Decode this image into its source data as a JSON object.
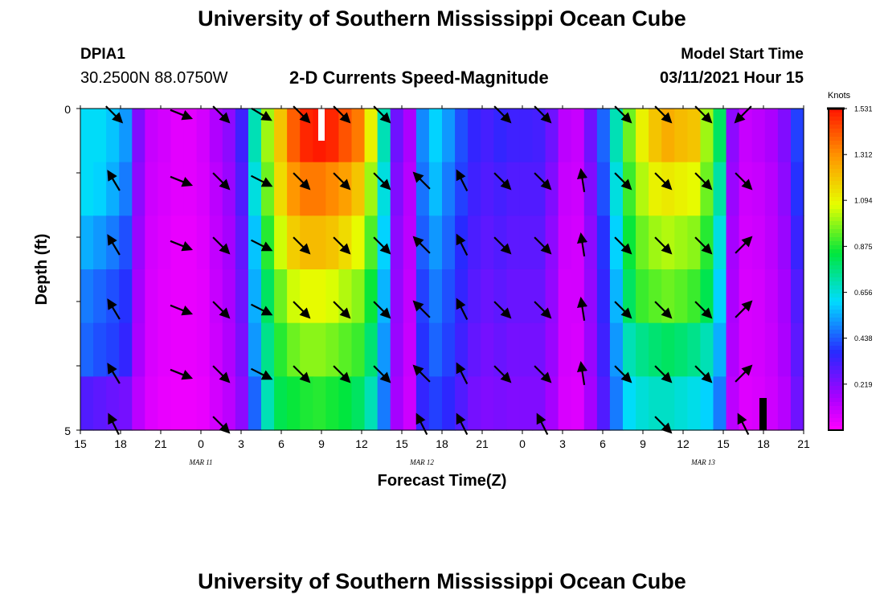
{
  "header": {
    "title": "University of Southern Mississippi Ocean Cube",
    "station_id": "DPIA1",
    "coords": "30.2500N 88.0750W",
    "plot_title": "2-D Currents Speed-Magnitude",
    "start_label": "Model Start Time",
    "start_value": "03/11/2021 Hour 15"
  },
  "footer": {
    "title": "University of Southern Mississippi Ocean Cube"
  },
  "colorbar": {
    "units": "Knots",
    "ticks": [
      "1.531",
      "1.312",
      "1.094",
      "0.875",
      "0.656",
      "0.438",
      "0.219"
    ],
    "tick_values": [
      1.531,
      1.312,
      1.094,
      0.875,
      0.656,
      0.438,
      0.219
    ],
    "min": 0,
    "max": 1.531
  },
  "chart_data": {
    "type": "heatmap",
    "title": "2-D Currents Speed-Magnitude",
    "xlabel": "Forecast Time(Z)",
    "ylabel": "Depth (ft)",
    "x_tick_labels": [
      "15",
      "18",
      "21",
      "0",
      "3",
      "6",
      "9",
      "12",
      "15",
      "18",
      "21",
      "0",
      "3",
      "6",
      "9",
      "12",
      "15",
      "18",
      "21"
    ],
    "date_labels": [
      "MAR 11",
      "MAR 12",
      "MAR 13"
    ],
    "y_tick_labels": [
      "0",
      "5"
    ],
    "ylim": [
      0,
      5
    ],
    "x_range_hours": [
      0,
      54
    ],
    "depth_layers": 5,
    "speed_profile": [
      [
        0.62,
        0.62,
        0.58,
        0.52,
        0.22,
        0.1,
        0.08,
        0.05,
        0.05,
        0.08,
        0.14,
        0.2,
        0.33,
        0.7,
        1.0,
        1.2,
        1.4,
        1.5,
        1.52,
        1.5,
        1.42,
        1.35,
        1.1,
        0.7,
        0.25,
        0.15,
        0.5,
        0.6,
        0.52,
        0.42,
        0.35,
        0.32,
        0.35,
        0.33,
        0.33,
        0.32,
        0.25,
        0.12,
        0.1,
        0.25,
        0.45,
        0.7,
        0.95,
        1.1,
        1.2,
        1.25,
        1.22,
        1.2,
        1.0,
        0.8,
        0.2,
        0.1,
        0.12,
        0.15,
        0.22,
        0.4
      ],
      [
        0.62,
        0.6,
        0.55,
        0.48,
        0.2,
        0.09,
        0.07,
        0.05,
        0.05,
        0.07,
        0.12,
        0.18,
        0.3,
        0.65,
        0.95,
        1.15,
        1.3,
        1.35,
        1.35,
        1.32,
        1.28,
        1.2,
        1.0,
        0.65,
        0.22,
        0.13,
        0.47,
        0.57,
        0.48,
        0.4,
        0.33,
        0.3,
        0.32,
        0.3,
        0.3,
        0.3,
        0.22,
        0.1,
        0.09,
        0.22,
        0.42,
        0.65,
        0.9,
        1.02,
        1.1,
        1.12,
        1.1,
        1.08,
        0.95,
        0.72,
        0.18,
        0.09,
        0.1,
        0.13,
        0.2,
        0.38
      ],
      [
        0.55,
        0.52,
        0.48,
        0.42,
        0.18,
        0.08,
        0.06,
        0.04,
        0.04,
        0.06,
        0.11,
        0.16,
        0.27,
        0.58,
        0.88,
        1.05,
        1.18,
        1.22,
        1.22,
        1.2,
        1.15,
        1.08,
        0.92,
        0.6,
        0.2,
        0.12,
        0.44,
        0.52,
        0.45,
        0.37,
        0.31,
        0.28,
        0.3,
        0.28,
        0.28,
        0.28,
        0.2,
        0.09,
        0.08,
        0.2,
        0.38,
        0.6,
        0.85,
        0.95,
        1.0,
        1.02,
        1.0,
        0.98,
        0.88,
        0.65,
        0.16,
        0.08,
        0.09,
        0.12,
        0.18,
        0.34
      ],
      [
        0.48,
        0.45,
        0.42,
        0.38,
        0.16,
        0.07,
        0.05,
        0.04,
        0.04,
        0.05,
        0.1,
        0.15,
        0.25,
        0.55,
        0.8,
        0.95,
        1.05,
        1.08,
        1.08,
        1.06,
        1.02,
        0.98,
        0.85,
        0.56,
        0.19,
        0.11,
        0.4,
        0.48,
        0.42,
        0.35,
        0.29,
        0.26,
        0.28,
        0.26,
        0.26,
        0.26,
        0.19,
        0.08,
        0.08,
        0.19,
        0.35,
        0.56,
        0.8,
        0.9,
        0.93,
        0.95,
        0.93,
        0.9,
        0.82,
        0.6,
        0.15,
        0.07,
        0.08,
        0.11,
        0.16,
        0.3
      ],
      [
        0.45,
        0.42,
        0.4,
        0.35,
        0.15,
        0.07,
        0.05,
        0.04,
        0.04,
        0.05,
        0.09,
        0.14,
        0.23,
        0.52,
        0.75,
        0.88,
        0.95,
        0.98,
        0.98,
        0.96,
        0.93,
        0.9,
        0.78,
        0.52,
        0.18,
        0.1,
        0.38,
        0.45,
        0.4,
        0.33,
        0.27,
        0.24,
        0.26,
        0.24,
        0.24,
        0.24,
        0.18,
        0.08,
        0.07,
        0.18,
        0.33,
        0.52,
        0.7,
        0.75,
        0.78,
        0.8,
        0.78,
        0.75,
        0.7,
        0.55,
        0.14,
        0.07,
        0.08,
        0.1,
        0.15,
        0.28
      ],
      [
        0.3,
        0.28,
        0.26,
        0.24,
        0.12,
        0.06,
        0.04,
        0.03,
        0.03,
        0.04,
        0.08,
        0.12,
        0.2,
        0.45,
        0.7,
        0.82,
        0.85,
        0.87,
        0.88,
        0.86,
        0.84,
        0.8,
        0.7,
        0.48,
        0.16,
        0.09,
        0.35,
        0.4,
        0.36,
        0.3,
        0.24,
        0.22,
        0.23,
        0.22,
        0.22,
        0.22,
        0.16,
        0.07,
        0.06,
        0.16,
        0.3,
        0.48,
        0.62,
        0.66,
        0.68,
        0.68,
        0.66,
        0.64,
        0.6,
        0.48,
        0.12,
        0.06,
        0.07,
        0.09,
        0.13,
        0.25
      ]
    ],
    "vectors": [
      {
        "hour": 2.5,
        "depth": 0,
        "dx": 1,
        "dy": 1
      },
      {
        "hour": 7.5,
        "depth": 0,
        "dx": 1,
        "dy": 0.4
      },
      {
        "hour": 10.5,
        "depth": 0,
        "dx": 1,
        "dy": 1
      },
      {
        "hour": 13.5,
        "depth": 0,
        "dx": 1,
        "dy": 0.6
      },
      {
        "hour": 16.5,
        "depth": 0,
        "dx": 1,
        "dy": 1
      },
      {
        "hour": 19.5,
        "depth": 0,
        "dx": 1,
        "dy": 1
      },
      {
        "hour": 22.5,
        "depth": 0,
        "dx": 1,
        "dy": 1
      },
      {
        "hour": 31.5,
        "depth": 0,
        "dx": 1,
        "dy": 1
      },
      {
        "hour": 34.5,
        "depth": 0,
        "dx": 1,
        "dy": 1
      },
      {
        "hour": 40.5,
        "depth": 0,
        "dx": 1,
        "dy": 1
      },
      {
        "hour": 43.5,
        "depth": 0,
        "dx": 1,
        "dy": 1
      },
      {
        "hour": 46.5,
        "depth": 0,
        "dx": 1,
        "dy": 1
      },
      {
        "hour": 49.5,
        "depth": 0,
        "dx": -1,
        "dy": 1
      },
      {
        "hour": 2.5,
        "depth": 1,
        "dx": -0.6,
        "dy": -1
      },
      {
        "hour": 7.5,
        "depth": 1,
        "dx": 1,
        "dy": 0.4
      },
      {
        "hour": 10.5,
        "depth": 1,
        "dx": 1,
        "dy": 1
      },
      {
        "hour": 13.5,
        "depth": 1,
        "dx": 1,
        "dy": 0.5
      },
      {
        "hour": 16.5,
        "depth": 1,
        "dx": 1,
        "dy": 1
      },
      {
        "hour": 19.5,
        "depth": 1,
        "dx": 1,
        "dy": 1
      },
      {
        "hour": 22.5,
        "depth": 1,
        "dx": 1,
        "dy": 1
      },
      {
        "hour": 25.5,
        "depth": 1,
        "dx": -1,
        "dy": -1
      },
      {
        "hour": 28.5,
        "depth": 1,
        "dx": -0.5,
        "dy": -1
      },
      {
        "hour": 31.5,
        "depth": 1,
        "dx": 1,
        "dy": 1
      },
      {
        "hour": 34.5,
        "depth": 1,
        "dx": 1,
        "dy": 1
      },
      {
        "hour": 37.5,
        "depth": 1,
        "dx": -0.15,
        "dy": -1
      },
      {
        "hour": 40.5,
        "depth": 1,
        "dx": 1,
        "dy": 1
      },
      {
        "hour": 43.5,
        "depth": 1,
        "dx": 1,
        "dy": 1
      },
      {
        "hour": 46.5,
        "depth": 1,
        "dx": 1,
        "dy": 1
      },
      {
        "hour": 49.5,
        "depth": 1,
        "dx": 1,
        "dy": 1
      }
    ]
  },
  "axes": {
    "xlabel": "Forecast Time(Z)",
    "ylabel": "Depth (ft)"
  }
}
